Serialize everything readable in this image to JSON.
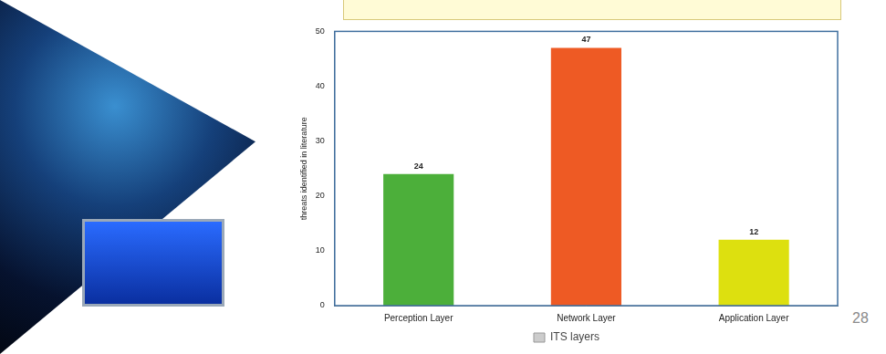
{
  "chart_data": {
    "type": "bar",
    "y_label": "threats identified in literature",
    "categories": [
      "Perception Layer",
      "Network Layer",
      "Application Layer"
    ],
    "series": [
      {
        "name": "ITS layers",
        "colors": [
          "#4caf3a",
          "#ee5a24",
          "#dde00f"
        ],
        "values": [
          24,
          47,
          12
        ]
      }
    ],
    "ylim": [
      0,
      50
    ],
    "yticks": [
      0,
      10,
      20,
      30,
      40,
      50
    ],
    "grid": false,
    "legend": "bottom",
    "data_labels": true,
    "page_number": "28"
  }
}
